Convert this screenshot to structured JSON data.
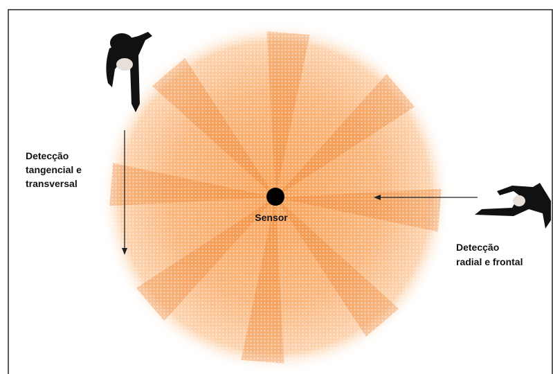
{
  "left_label": {
    "lines": [
      "Detecção",
      "tangencial e",
      "transversal"
    ]
  },
  "sensor_label": "Sensor",
  "right_label": {
    "lines": [
      "Detecção",
      "radial e frontal"
    ]
  }
}
